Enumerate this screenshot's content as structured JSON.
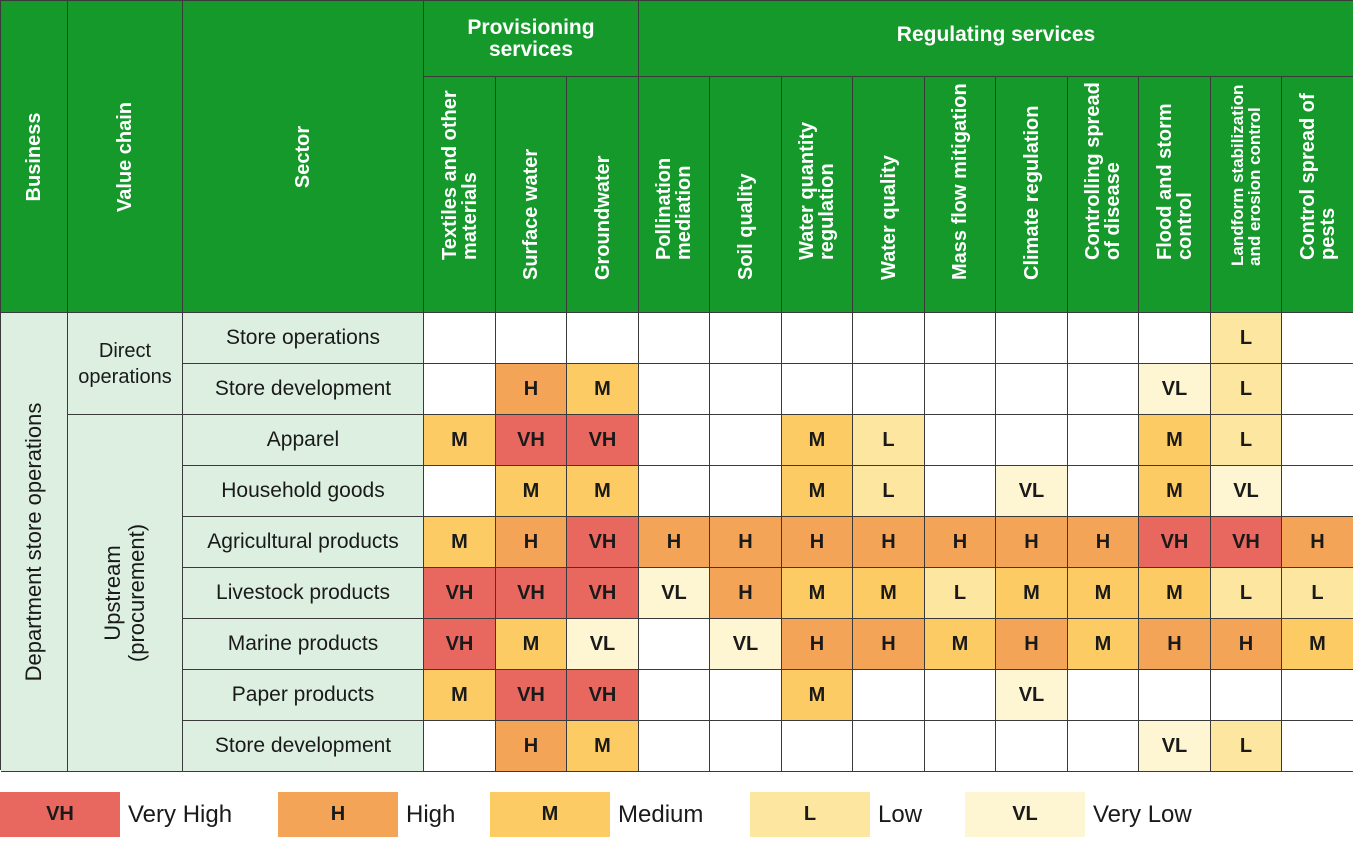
{
  "chart_data": {
    "type": "table",
    "headers": {
      "business": "Business",
      "value_chain": "Value chain",
      "sector": "Sector",
      "groups": [
        {
          "label": "Provisioning services",
          "span": 3
        },
        {
          "label": "Regulating services",
          "span": 10
        }
      ],
      "services": [
        "Textiles and other materials",
        "Surface water",
        "Groundwater",
        "Pollination mediation",
        "Soil quality",
        "Water quantity regulation",
        "Water quality",
        "Mass flow mitigation",
        "Climate regulation",
        "Controlling spread of disease",
        "Flood and storm control",
        "Landform stabilization and erosion control",
        "Control spread of pests"
      ]
    },
    "business": "Department store operations",
    "value_chains": [
      {
        "label": "Direct operations",
        "rows": 2
      },
      {
        "label": "Upstream (procurement)",
        "rows": 7
      }
    ],
    "rows": [
      {
        "sector": "Store operations",
        "values": [
          "",
          "",
          "",
          "",
          "",
          "",
          "",
          "",
          "",
          "",
          "",
          "L",
          ""
        ]
      },
      {
        "sector": "Store development",
        "values": [
          "",
          "H",
          "M",
          "",
          "",
          "",
          "",
          "",
          "",
          "",
          "VL",
          "L",
          ""
        ]
      },
      {
        "sector": "Apparel",
        "values": [
          "M",
          "VH",
          "VH",
          "",
          "",
          "M",
          "L",
          "",
          "",
          "",
          "M",
          "L",
          ""
        ]
      },
      {
        "sector": "Household goods",
        "values": [
          "",
          "M",
          "M",
          "",
          "",
          "M",
          "L",
          "",
          "VL",
          "",
          "M",
          "VL",
          ""
        ]
      },
      {
        "sector": "Agricultural products",
        "values": [
          "M",
          "H",
          "VH",
          "H",
          "H",
          "H",
          "H",
          "H",
          "H",
          "H",
          "VH",
          "VH",
          "H"
        ]
      },
      {
        "sector": "Livestock products",
        "values": [
          "VH",
          "VH",
          "VH",
          "VL",
          "H",
          "M",
          "M",
          "L",
          "M",
          "M",
          "M",
          "L",
          "L"
        ]
      },
      {
        "sector": "Marine products",
        "values": [
          "VH",
          "M",
          "VL",
          "",
          "VL",
          "H",
          "H",
          "M",
          "H",
          "M",
          "H",
          "H",
          "M"
        ]
      },
      {
        "sector": "Paper products",
        "values": [
          "M",
          "VH",
          "VH",
          "",
          "",
          "M",
          "",
          "",
          "VL",
          "",
          "",
          "",
          ""
        ]
      },
      {
        "sector": "Store development",
        "values": [
          "",
          "H",
          "M",
          "",
          "",
          "",
          "",
          "",
          "",
          "",
          "VL",
          "L",
          ""
        ]
      }
    ],
    "legend": [
      {
        "code": "VH",
        "label": "Very High",
        "color": "#e8675f"
      },
      {
        "code": "H",
        "label": "High",
        "color": "#f4a456"
      },
      {
        "code": "M",
        "label": "Medium",
        "color": "#fccb63"
      },
      {
        "code": "L",
        "label": "Low",
        "color": "#fde6a0"
      },
      {
        "code": "VL",
        "label": "Very Low",
        "color": "#fef6d3"
      }
    ],
    "header_color": "#15992b",
    "side_color": "#dcefe0"
  }
}
